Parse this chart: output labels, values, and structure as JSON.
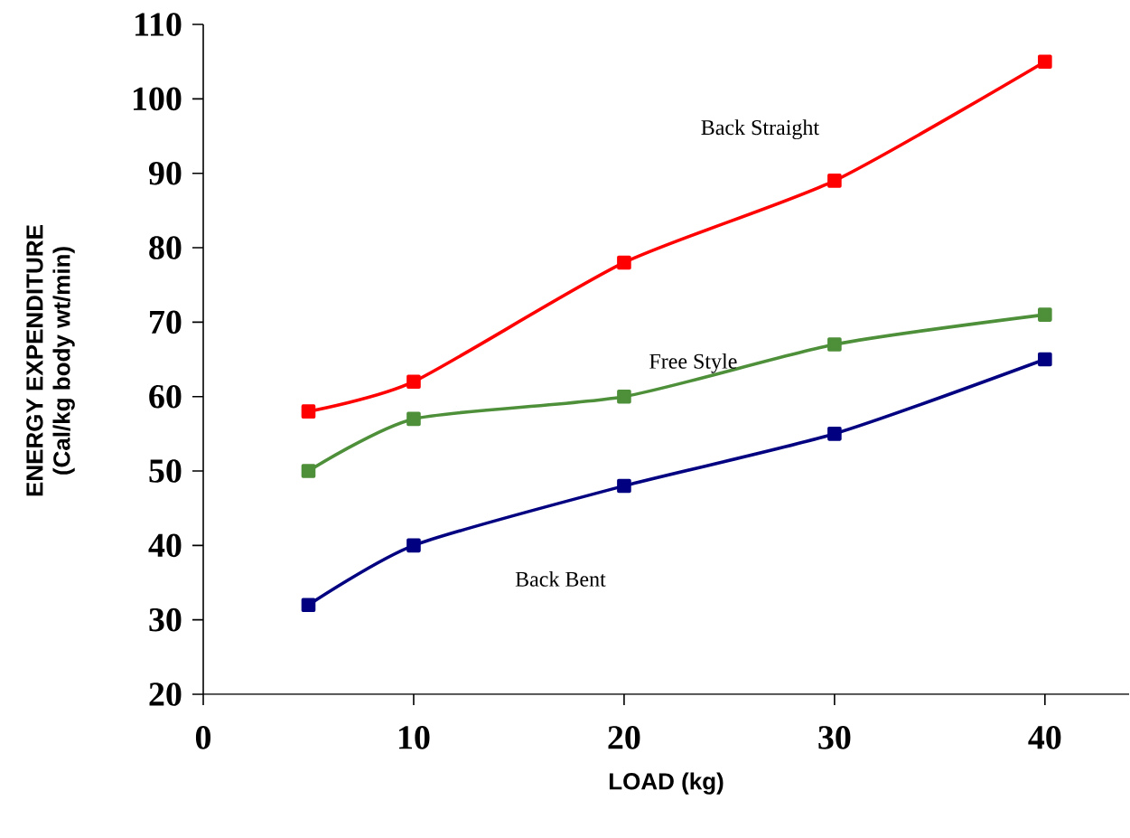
{
  "chart_data": {
    "type": "line",
    "xlabel": "LOAD (kg)",
    "ylabel": "ENERGY EXPENDITURE\n(Cal/kg body wt/min)",
    "x": [
      5,
      10,
      20,
      30,
      40
    ],
    "series": [
      {
        "name": "Back Straight",
        "color": "#ff0000",
        "values": [
          58,
          62,
          78,
          89,
          105
        ]
      },
      {
        "name": "Free Style",
        "color": "#4e8f3a",
        "values": [
          50,
          57,
          60,
          67,
          71
        ]
      },
      {
        "name": "Back Bent",
        "color": "#000080",
        "values": [
          32,
          40,
          48,
          55,
          65
        ]
      }
    ],
    "xlim": [
      0,
      44
    ],
    "ylim": [
      20,
      110
    ],
    "xticks": [
      0,
      10,
      20,
      30,
      40
    ],
    "yticks": [
      20,
      30,
      40,
      50,
      60,
      70,
      80,
      90,
      100,
      110
    ],
    "marker": "square",
    "line_style": "solid",
    "grid": false,
    "legend": false
  }
}
